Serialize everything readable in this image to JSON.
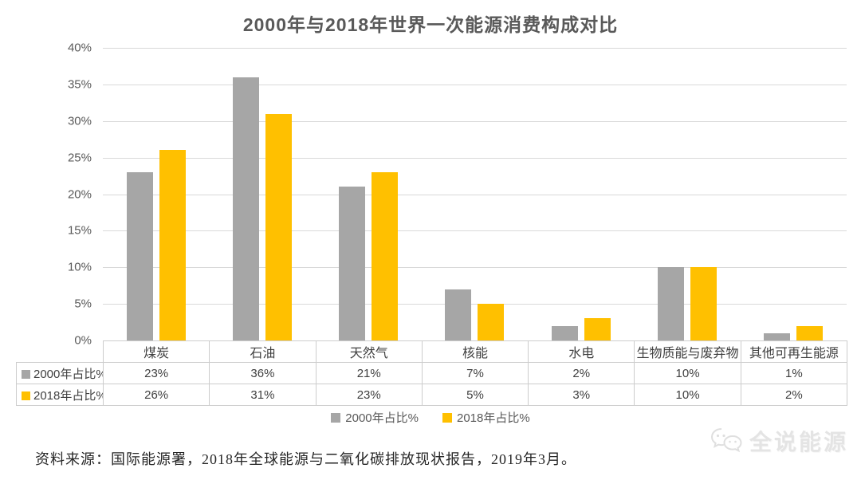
{
  "chart_data": {
    "type": "bar",
    "title": "2000年与2018年世界一次能源消费构成对比",
    "categories": [
      "煤炭",
      "石油",
      "天然气",
      "核能",
      "水电",
      "生物质能与废弃物",
      "其他可再生能源"
    ],
    "series": [
      {
        "name": "2000年占比%",
        "color": "#A6A6A6",
        "values": [
          23,
          36,
          21,
          7,
          2,
          10,
          1
        ]
      },
      {
        "name": "2018年占比%",
        "color": "#FFC000",
        "values": [
          26,
          31,
          23,
          5,
          3,
          10,
          2
        ]
      }
    ],
    "xlabel": "",
    "ylabel": "",
    "ylim": [
      0,
      40
    ],
    "ytick_step": 5,
    "ytick_suffix": "%",
    "value_suffix": "%",
    "grid": true,
    "gridline_color": "#D9D9D9",
    "legend_position": "bottom",
    "show_data_table": true
  },
  "colors": {
    "title_text": "#595959",
    "axis_text": "#595959",
    "table_border": "#CDCDCD",
    "table_text": "#404040"
  },
  "footer": {
    "source_text": "资料来源：国际能源署，2018年全球能源与二氧化碳排放现状报告，2019年3月。"
  },
  "watermark": {
    "text": "全说能源",
    "icon": "wechat-logo-icon"
  }
}
